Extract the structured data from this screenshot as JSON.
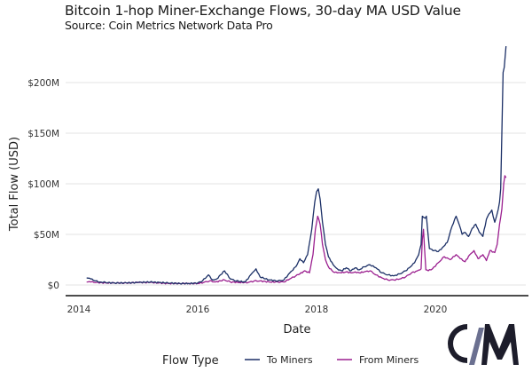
{
  "chart_data": {
    "type": "line",
    "title": "Bitcoin 1-hop Miner-Exchange Flows, 30-day MA USD Value",
    "subtitle": "Source: Coin Metrics Network Data Pro",
    "xlabel": "Date",
    "ylabel": "Total Flow (USD)",
    "xlim": [
      2013.78,
      2021.57
    ],
    "ylim": [
      0,
      235
    ],
    "x_ticks": [
      {
        "value": 2014,
        "label": "2014"
      },
      {
        "value": 2016,
        "label": "2016"
      },
      {
        "value": 2018,
        "label": "2018"
      },
      {
        "value": 2020,
        "label": "2020"
      }
    ],
    "y_ticks": [
      {
        "value": 0,
        "label": "$0"
      },
      {
        "value": 50,
        "label": "$50M"
      },
      {
        "value": 100,
        "label": "$100M"
      },
      {
        "value": 150,
        "label": "$150M"
      },
      {
        "value": 200,
        "label": "$200M"
      }
    ],
    "y_units": "USD millions",
    "grid": "horizontal",
    "legend": {
      "title": "Flow Type",
      "placement": "bottom"
    },
    "series": [
      {
        "name": "To Miners",
        "color": "#1b2f66",
        "x": [
          2014.13,
          2014.2,
          2014.28,
          2014.35,
          2014.45,
          2014.6,
          2014.8,
          2015.0,
          2015.2,
          2015.35,
          2015.5,
          2015.7,
          2015.85,
          2016.0,
          2016.08,
          2016.18,
          2016.25,
          2016.32,
          2016.45,
          2016.55,
          2016.65,
          2016.8,
          2016.92,
          2016.98,
          2017.05,
          2017.2,
          2017.35,
          2017.45,
          2017.55,
          2017.65,
          2017.72,
          2017.78,
          2017.85,
          2017.92,
          2017.97,
          2018.0,
          2018.03,
          2018.06,
          2018.1,
          2018.15,
          2018.2,
          2018.28,
          2018.35,
          2018.42,
          2018.5,
          2018.58,
          2018.65,
          2018.72,
          2018.8,
          2018.9,
          2019.0,
          2019.1,
          2019.2,
          2019.3,
          2019.4,
          2019.5,
          2019.58,
          2019.65,
          2019.72,
          2019.76,
          2019.78,
          2019.83,
          2019.85,
          2019.9,
          2019.98,
          2020.05,
          2020.12,
          2020.2,
          2020.28,
          2020.35,
          2020.4,
          2020.45,
          2020.5,
          2020.56,
          2020.62,
          2020.68,
          2020.74,
          2020.8,
          2020.86,
          2020.9,
          2020.95,
          2021.0,
          2021.03,
          2021.06,
          2021.08,
          2021.1,
          2021.12,
          2021.14,
          2021.16,
          2021.19
        ],
        "values": [
          7,
          6,
          4,
          3,
          2.5,
          2,
          2,
          2.5,
          3,
          2.5,
          2,
          1.5,
          1.5,
          2,
          4,
          10,
          5,
          6,
          14,
          6,
          4,
          3,
          12,
          16,
          8,
          5,
          4,
          5,
          12,
          18,
          26,
          22,
          30,
          55,
          82,
          92,
          95,
          85,
          62,
          40,
          28,
          20,
          16,
          14,
          17,
          14,
          17,
          15,
          18,
          20,
          17,
          12,
          10,
          9,
          11,
          14,
          18,
          22,
          30,
          40,
          68,
          66,
          68,
          36,
          34,
          33,
          37,
          42,
          58,
          68,
          60,
          50,
          52,
          48,
          56,
          60,
          52,
          48,
          65,
          70,
          74,
          62,
          68,
          75,
          82,
          95,
          150,
          210,
          215,
          236
        ]
      },
      {
        "name": "From Miners",
        "color": "#9b1f8f",
        "x": [
          2014.13,
          2014.2,
          2014.3,
          2014.45,
          2014.6,
          2014.8,
          2015.0,
          2015.2,
          2015.35,
          2015.5,
          2015.7,
          2015.85,
          2016.0,
          2016.1,
          2016.2,
          2016.3,
          2016.45,
          2016.55,
          2016.7,
          2016.85,
          2016.95,
          2017.05,
          2017.2,
          2017.35,
          2017.45,
          2017.55,
          2017.65,
          2017.72,
          2017.8,
          2017.88,
          2017.94,
          2017.98,
          2018.02,
          2018.06,
          2018.1,
          2018.15,
          2018.2,
          2018.28,
          2018.35,
          2018.42,
          2018.5,
          2018.58,
          2018.65,
          2018.72,
          2018.8,
          2018.9,
          2019.0,
          2019.1,
          2019.2,
          2019.3,
          2019.4,
          2019.5,
          2019.6,
          2019.7,
          2019.76,
          2019.78,
          2019.8,
          2019.84,
          2019.88,
          2019.95,
          2020.05,
          2020.15,
          2020.25,
          2020.35,
          2020.42,
          2020.5,
          2020.58,
          2020.65,
          2020.72,
          2020.8,
          2020.86,
          2020.92,
          2021.0,
          2021.04,
          2021.08,
          2021.12,
          2021.15,
          2021.17,
          2021.19
        ],
        "values": [
          3,
          3,
          2.5,
          2,
          2,
          2,
          2.5,
          2.5,
          2,
          1.5,
          1.5,
          1.5,
          1.5,
          2.5,
          4,
          3,
          5,
          3,
          2.5,
          2.5,
          4,
          4,
          3,
          3,
          3,
          6,
          9,
          11,
          14,
          12,
          30,
          55,
          68,
          60,
          40,
          25,
          18,
          13,
          12,
          12,
          13,
          12,
          13,
          12,
          13,
          14,
          10,
          7,
          5,
          5,
          6,
          8,
          12,
          14,
          16,
          45,
          55,
          15,
          14,
          16,
          22,
          28,
          25,
          30,
          26,
          23,
          30,
          34,
          26,
          30,
          24,
          34,
          32,
          40,
          60,
          75,
          100,
          108,
          106
        ]
      }
    ]
  },
  "branding": {
    "logo": "cm-logo-icon",
    "logo_colors": {
      "primary": "#1d1d2b",
      "slash": "#6b7090"
    }
  }
}
